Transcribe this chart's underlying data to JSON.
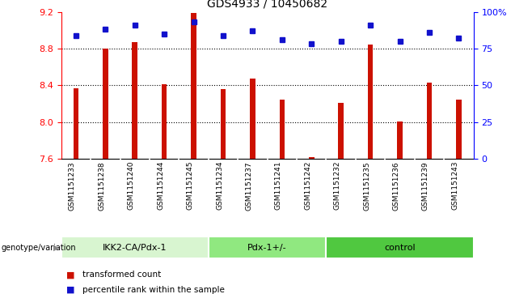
{
  "title": "GDS4933 / 10450682",
  "samples": [
    "GSM1151233",
    "GSM1151238",
    "GSM1151240",
    "GSM1151244",
    "GSM1151245",
    "GSM1151234",
    "GSM1151237",
    "GSM1151241",
    "GSM1151242",
    "GSM1151232",
    "GSM1151235",
    "GSM1151236",
    "GSM1151239",
    "GSM1151243"
  ],
  "bar_values": [
    8.37,
    8.8,
    8.87,
    8.41,
    9.19,
    8.36,
    8.47,
    8.24,
    7.62,
    8.21,
    8.84,
    8.01,
    8.43,
    8.24
  ],
  "dot_values": [
    84,
    88,
    91,
    85,
    93,
    84,
    87,
    81,
    78,
    80,
    91,
    80,
    86,
    82
  ],
  "groups": [
    {
      "label": "IKK2-CA/Pdx-1",
      "start": 0,
      "end": 5,
      "color": "#d8f5d0"
    },
    {
      "label": "Pdx-1+/-",
      "start": 5,
      "end": 9,
      "color": "#90e880"
    },
    {
      "label": "control",
      "start": 9,
      "end": 14,
      "color": "#50c840"
    }
  ],
  "ymin": 7.6,
  "ymax": 9.2,
  "y2min": 0,
  "y2max": 100,
  "yticks": [
    7.6,
    8.0,
    8.4,
    8.8,
    9.2
  ],
  "y2ticks": [
    0,
    25,
    50,
    75,
    100
  ],
  "bar_color": "#cc1100",
  "dot_color": "#1111cc",
  "bar_bottom": 7.6,
  "genotype_label": "genotype/variation",
  "legend_bar": "transformed count",
  "legend_dot": "percentile rank within the sample",
  "grid_values": [
    8.0,
    8.4,
    8.8
  ],
  "sample_bg": "#d8d8d8",
  "sample_divider": "#ffffff"
}
